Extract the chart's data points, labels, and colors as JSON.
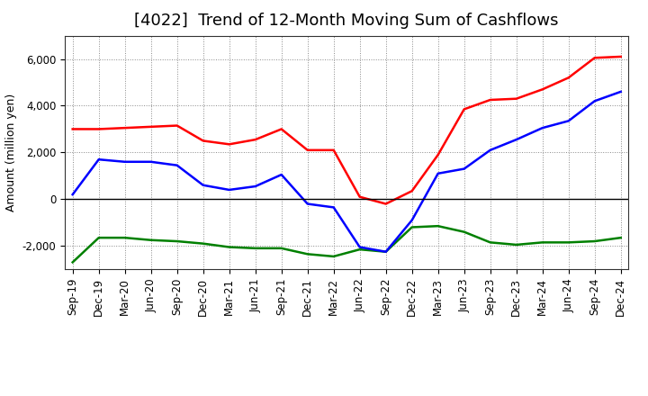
{
  "title": "[4022]  Trend of 12-Month Moving Sum of Cashflows",
  "ylabel": "Amount (million yen)",
  "x_labels": [
    "Sep-19",
    "Dec-19",
    "Mar-20",
    "Jun-20",
    "Sep-20",
    "Dec-20",
    "Mar-21",
    "Jun-21",
    "Sep-21",
    "Dec-21",
    "Mar-22",
    "Jun-22",
    "Sep-22",
    "Dec-22",
    "Mar-23",
    "Jun-23",
    "Sep-23",
    "Dec-23",
    "Mar-24",
    "Jun-24",
    "Sep-24",
    "Dec-24"
  ],
  "operating": [
    3000,
    3000,
    3050,
    3100,
    3150,
    2500,
    2350,
    2550,
    3000,
    2100,
    2100,
    100,
    -200,
    350,
    1900,
    3850,
    4250,
    4300,
    4700,
    5200,
    6050,
    6100
  ],
  "investing": [
    -2700,
    -1650,
    -1650,
    -1750,
    -1800,
    -1900,
    -2050,
    -2100,
    -2100,
    -2350,
    -2450,
    -2150,
    -2250,
    -1200,
    -1150,
    -1400,
    -1850,
    -1950,
    -1850,
    -1850,
    -1800,
    -1650
  ],
  "free": [
    200,
    1700,
    1600,
    1600,
    1450,
    600,
    400,
    550,
    1050,
    -200,
    -350,
    -2050,
    -2250,
    -900,
    1100,
    1300,
    2100,
    2550,
    3050,
    3350,
    4200,
    4600
  ],
  "operating_color": "#FF0000",
  "investing_color": "#008000",
  "free_color": "#0000FF",
  "ylim_min": -3000,
  "ylim_max": 7000,
  "yticks": [
    -2000,
    0,
    2000,
    4000,
    6000
  ],
  "background_color": "#FFFFFF",
  "grid_color": "#888888",
  "title_fontsize": 13,
  "axis_fontsize": 8.5,
  "ylabel_fontsize": 9
}
